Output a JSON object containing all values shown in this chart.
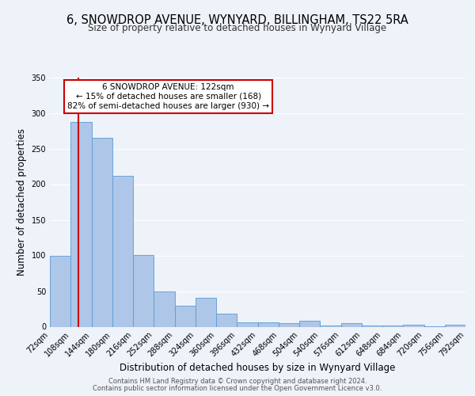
{
  "title": "6, SNOWDROP AVENUE, WYNYARD, BILLINGHAM, TS22 5RA",
  "subtitle": "Size of property relative to detached houses in Wynyard Village",
  "xlabel": "Distribution of detached houses by size in Wynyard Village",
  "ylabel": "Number of detached properties",
  "bin_edges": [
    72,
    108,
    144,
    180,
    216,
    252,
    288,
    324,
    360,
    396,
    432,
    468,
    504,
    540,
    576,
    612,
    648,
    684,
    720,
    756,
    792
  ],
  "bar_heights": [
    100,
    287,
    265,
    212,
    101,
    50,
    30,
    41,
    18,
    6,
    6,
    5,
    8,
    2,
    5,
    2,
    2,
    3,
    1,
    3
  ],
  "bar_color": "#aec6e8",
  "bar_edge_color": "#5b9bd5",
  "vline_x": 122,
  "vline_color": "#cc0000",
  "ylim": [
    0,
    350
  ],
  "yticks": [
    0,
    50,
    100,
    150,
    200,
    250,
    300,
    350
  ],
  "annotation_title": "6 SNOWDROP AVENUE: 122sqm",
  "annotation_line1": "← 15% of detached houses are smaller (168)",
  "annotation_line2": "82% of semi-detached houses are larger (930) →",
  "annotation_box_color": "#ffffff",
  "annotation_box_edge": "#cc0000",
  "footer_line1": "Contains HM Land Registry data © Crown copyright and database right 2024.",
  "footer_line2": "Contains public sector information licensed under the Open Government Licence v3.0.",
  "background_color": "#eef2f9",
  "grid_color": "#ffffff",
  "title_fontsize": 10.5,
  "subtitle_fontsize": 8.5,
  "xlabel_fontsize": 8.5,
  "ylabel_fontsize": 8.5,
  "tick_label_fontsize": 7,
  "annotation_fontsize": 7.5,
  "footer_fontsize": 6
}
